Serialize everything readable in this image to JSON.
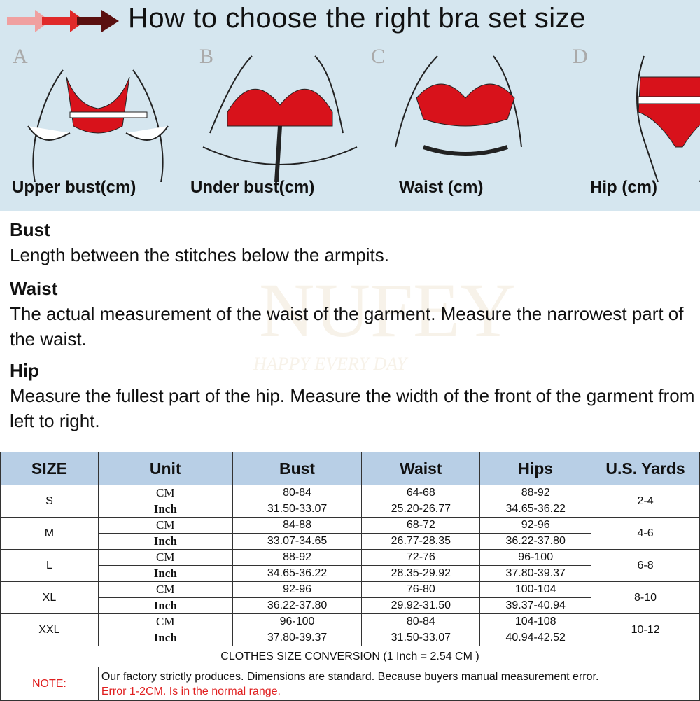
{
  "banner": {
    "title": "How to choose the right bra set size",
    "panels": [
      {
        "letter": "A",
        "caption": "Upper bust(cm)"
      },
      {
        "letter": "B",
        "caption": "Under bust(cm)"
      },
      {
        "letter": "C",
        "caption": "Waist (cm)"
      },
      {
        "letter": "D",
        "caption": "Hip (cm)"
      }
    ],
    "colors": {
      "background": "#d5e6ef",
      "garment": "#d8121b",
      "arrow": "#c0141c"
    }
  },
  "watermark": {
    "brand": "NUFEY",
    "slogan": "HAPPY EVERY DAY"
  },
  "descriptions": [
    {
      "heading": "Bust",
      "text": "Length between the stitches below the armpits."
    },
    {
      "heading": "Waist",
      "text": "The actual measurement of the waist of the garment. Measure the narrowest part of the waist."
    },
    {
      "heading": "Hip",
      "text": "Measure the fullest part of the hip. Measure the width of the front of the garment from left to right."
    }
  ],
  "table": {
    "headers": [
      "SIZE",
      "Unit",
      "Bust",
      "Waist",
      "Hips",
      "U.S. Yards"
    ],
    "header_color": "#b8cfe6",
    "rows": [
      {
        "size": "S",
        "yards": "2-4",
        "cm": {
          "unit": "CM",
          "bust": "80-84",
          "waist": "64-68",
          "hips": "88-92"
        },
        "inch": {
          "unit": "Inch",
          "bust": "31.50-33.07",
          "waist": "25.20-26.77",
          "hips": "34.65-36.22"
        }
      },
      {
        "size": "M",
        "yards": "4-6",
        "cm": {
          "unit": "CM",
          "bust": "84-88",
          "waist": "68-72",
          "hips": "92-96"
        },
        "inch": {
          "unit": "Inch",
          "bust": "33.07-34.65",
          "waist": "26.77-28.35",
          "hips": "36.22-37.80"
        }
      },
      {
        "size": "L",
        "yards": "6-8",
        "cm": {
          "unit": "CM",
          "bust": "88-92",
          "waist": "72-76",
          "hips": "96-100"
        },
        "inch": {
          "unit": "Inch",
          "bust": "34.65-36.22",
          "waist": "28.35-29.92",
          "hips": "37.80-39.37"
        }
      },
      {
        "size": "XL",
        "yards": "8-10",
        "cm": {
          "unit": "CM",
          "bust": "92-96",
          "waist": "76-80",
          "hips": "100-104"
        },
        "inch": {
          "unit": "Inch",
          "bust": "36.22-37.80",
          "waist": "29.92-31.50",
          "hips": "39.37-40.94"
        }
      },
      {
        "size": "XXL",
        "yards": "10-12",
        "cm": {
          "unit": "CM",
          "bust": "96-100",
          "waist": "80-84",
          "hips": "104-108"
        },
        "inch": {
          "unit": "Inch",
          "bust": "37.80-39.37",
          "waist": "31.50-33.07",
          "hips": "40.94-42.52"
        }
      }
    ],
    "conversion": "CLOTHES SIZE CONVERSION (1 Inch = 2.54 CM )",
    "note_label": "NOTE:",
    "note_text": "Our factory strictly produces. Dimensions are standard. Because buyers manual measurement error.",
    "note_warning": "Error 1-2CM. Is in the normal range."
  }
}
